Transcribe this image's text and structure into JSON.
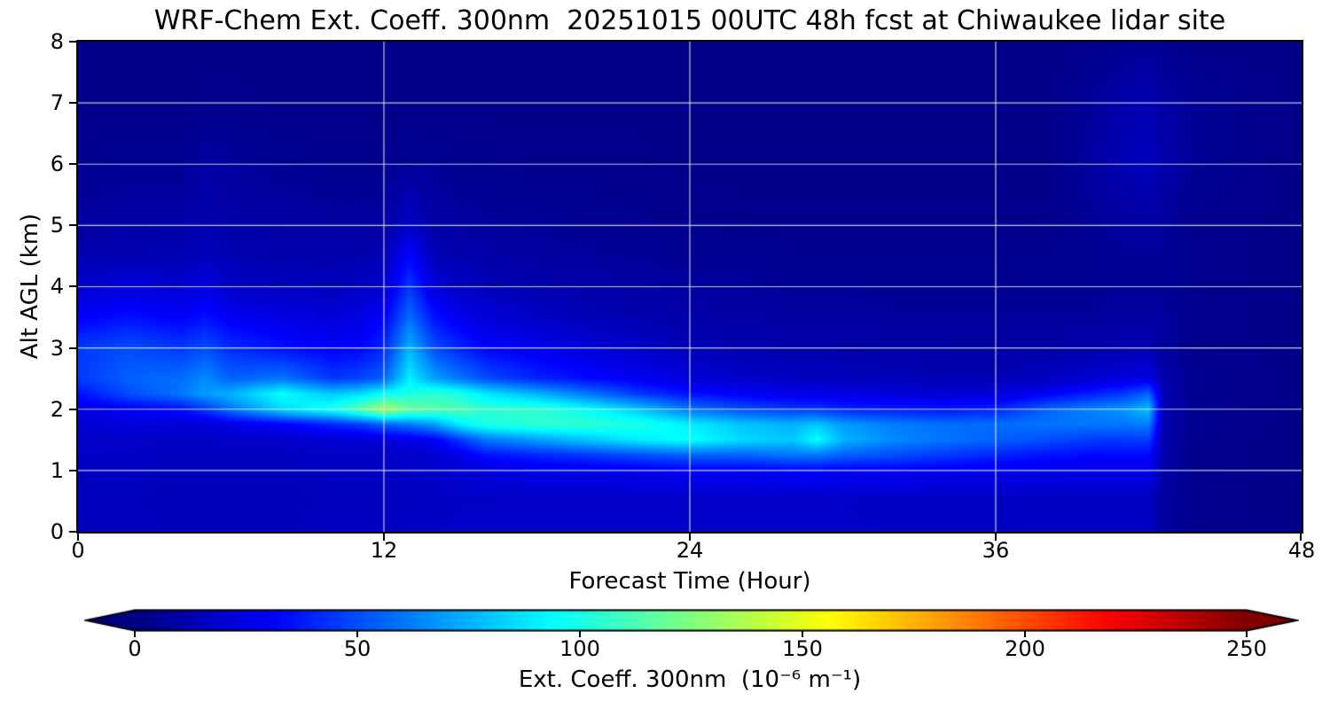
{
  "title": "WRF-Chem Ext. Coeff. 300nm  20251015 00UTC 48h fcst at Chiwaukee lidar site",
  "axes": {
    "x": {
      "label": "Forecast Time (Hour)"
    },
    "y": {
      "label": "Alt AGL (km)"
    }
  },
  "colorbar": {
    "label": "Ext. Coeff. 300nm  (10⁻⁶ m⁻¹)",
    "ticks": [
      0,
      50,
      100,
      150,
      200,
      250
    ],
    "range": [
      0,
      250
    ],
    "colormap": "jet",
    "extend": "both",
    "under_color": "#000080",
    "over_color": "#800000"
  },
  "chart_data": {
    "type": "heatmap",
    "title": "WRF-Chem Ext. Coeff. 300nm  20251015 00UTC 48h fcst at Chiwaukee lidar site",
    "xlabel": "Forecast Time (Hour)",
    "ylabel": "Alt AGL (km)",
    "value_label": "Ext. Coeff. 300nm (10^-6 m^-1)",
    "xlim": [
      0,
      48
    ],
    "ylim": [
      0,
      8
    ],
    "xticks": [
      0,
      12,
      24,
      36,
      48
    ],
    "yticks": [
      0,
      1,
      2,
      3,
      4,
      5,
      6,
      7,
      8
    ],
    "vmin": 0,
    "vmax": 250,
    "grid": true,
    "grid_color": "#dedede",
    "hours": [
      0,
      2,
      4,
      5,
      6,
      8,
      10,
      11,
      12,
      13,
      14,
      15,
      16,
      18,
      20,
      22,
      24,
      26,
      28,
      29,
      30,
      32,
      34,
      36,
      38,
      40,
      41,
      42,
      42.6,
      44,
      48
    ],
    "altitudes_km": [
      0,
      0.5,
      1,
      1.25,
      1.5,
      1.75,
      2,
      2.25,
      2.5,
      3,
      3.5,
      4,
      4.5,
      5,
      6,
      7,
      8
    ],
    "values": [
      [
        15,
        15,
        16,
        17,
        18,
        20,
        25,
        35,
        45,
        45,
        30,
        20,
        12,
        8,
        4,
        2,
        2
      ],
      [
        15,
        15,
        16,
        17,
        18,
        22,
        30,
        50,
        55,
        50,
        35,
        22,
        13,
        9,
        5,
        2,
        2
      ],
      [
        15,
        14,
        15,
        16,
        17,
        20,
        35,
        60,
        58,
        45,
        30,
        20,
        13,
        10,
        5,
        2,
        2
      ],
      [
        15,
        14,
        15,
        16,
        17,
        22,
        45,
        70,
        65,
        50,
        35,
        24,
        15,
        12,
        9,
        3,
        2
      ],
      [
        15,
        14,
        15,
        16,
        18,
        25,
        60,
        75,
        55,
        42,
        28,
        18,
        13,
        10,
        7,
        3,
        2
      ],
      [
        15,
        14,
        15,
        16,
        18,
        30,
        85,
        95,
        60,
        35,
        24,
        16,
        11,
        9,
        5,
        2,
        2
      ],
      [
        16,
        15,
        16,
        17,
        20,
        40,
        100,
        80,
        45,
        30,
        22,
        15,
        11,
        8,
        4,
        2,
        2
      ],
      [
        16,
        15,
        16,
        17,
        20,
        45,
        115,
        85,
        48,
        32,
        24,
        17,
        12,
        8,
        4,
        2,
        2
      ],
      [
        16,
        15,
        16,
        17,
        22,
        55,
        135,
        95,
        55,
        40,
        30,
        20,
        13,
        9,
        4,
        2,
        2
      ],
      [
        17,
        16,
        17,
        18,
        25,
        60,
        120,
        100,
        90,
        75,
        58,
        45,
        32,
        18,
        6,
        2,
        2
      ],
      [
        17,
        16,
        18,
        20,
        30,
        70,
        115,
        105,
        70,
        50,
        35,
        22,
        14,
        10,
        5,
        2,
        2
      ],
      [
        18,
        17,
        20,
        25,
        45,
        90,
        112,
        100,
        60,
        40,
        26,
        17,
        12,
        8,
        4,
        2,
        2
      ],
      [
        18,
        17,
        22,
        35,
        60,
        100,
        105,
        88,
        50,
        32,
        22,
        14,
        10,
        7,
        4,
        2,
        2
      ],
      [
        18,
        17,
        25,
        40,
        70,
        105,
        105,
        75,
        40,
        26,
        17,
        12,
        8,
        6,
        3,
        2,
        2
      ],
      [
        18,
        17,
        25,
        45,
        80,
        105,
        95,
        60,
        33,
        22,
        14,
        10,
        7,
        5,
        3,
        2,
        2
      ],
      [
        18,
        17,
        28,
        50,
        90,
        100,
        80,
        45,
        28,
        18,
        12,
        9,
        6,
        4,
        3,
        2,
        2
      ],
      [
        18,
        17,
        30,
        55,
        95,
        90,
        60,
        35,
        22,
        14,
        10,
        8,
        5,
        4,
        2,
        2,
        2
      ],
      [
        18,
        17,
        30,
        55,
        85,
        80,
        50,
        30,
        18,
        12,
        9,
        7,
        5,
        3,
        2,
        2,
        2
      ],
      [
        18,
        17,
        32,
        60,
        80,
        75,
        45,
        26,
        16,
        11,
        8,
        6,
        4,
        3,
        2,
        2,
        2
      ],
      [
        18,
        17,
        32,
        60,
        95,
        80,
        45,
        26,
        16,
        11,
        8,
        6,
        4,
        3,
        2,
        2,
        2
      ],
      [
        18,
        17,
        30,
        55,
        75,
        70,
        40,
        24,
        15,
        10,
        8,
        6,
        4,
        3,
        2,
        2,
        2
      ],
      [
        17,
        16,
        30,
        50,
        65,
        62,
        38,
        22,
        14,
        10,
        7,
        5,
        4,
        3,
        2,
        2,
        2
      ],
      [
        17,
        16,
        28,
        45,
        60,
        58,
        36,
        20,
        13,
        9,
        7,
        5,
        4,
        3,
        2,
        2,
        2
      ],
      [
        17,
        16,
        26,
        40,
        55,
        58,
        40,
        22,
        13,
        9,
        7,
        5,
        4,
        3,
        2,
        2,
        2
      ],
      [
        17,
        16,
        25,
        35,
        50,
        60,
        55,
        30,
        16,
        10,
        7,
        5,
        4,
        3,
        2,
        2,
        2
      ],
      [
        17,
        16,
        25,
        33,
        45,
        60,
        65,
        40,
        20,
        11,
        7,
        5,
        5,
        6,
        9,
        7,
        3
      ],
      [
        17,
        16,
        25,
        33,
        45,
        60,
        68,
        45,
        22,
        12,
        8,
        6,
        6,
        8,
        13,
        11,
        4
      ],
      [
        17,
        16,
        25,
        33,
        46,
        62,
        78,
        55,
        25,
        12,
        8,
        6,
        6,
        8,
        15,
        13,
        5
      ],
      [
        8,
        8,
        9,
        10,
        10,
        10,
        12,
        12,
        10,
        8,
        7,
        6,
        6,
        7,
        11,
        9,
        4
      ],
      [
        3,
        3,
        3,
        3,
        3,
        4,
        4,
        4,
        4,
        3,
        3,
        3,
        3,
        3,
        5,
        5,
        2
      ],
      [
        2,
        2,
        2,
        2,
        2,
        2,
        2,
        2,
        2,
        2,
        2,
        2,
        2,
        2,
        2,
        2,
        2
      ]
    ]
  }
}
